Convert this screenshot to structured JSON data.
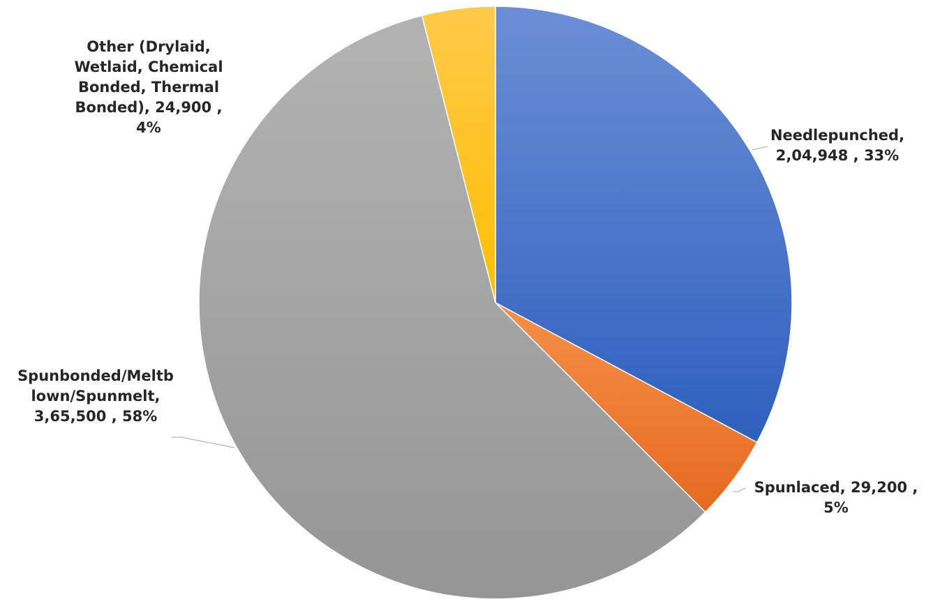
{
  "chart_data": {
    "type": "pie",
    "title": "",
    "legend": "none",
    "start_angle_deg": 0,
    "direction": "clockwise",
    "slices": [
      {
        "name": "Needlepunched",
        "value": 204948,
        "percent": 33,
        "color": "#4472c4",
        "label_lines": [
          "Needlepunched,",
          "2,04,948 , 33%"
        ]
      },
      {
        "name": "Spunlaced",
        "value": 29200,
        "percent": 5,
        "color": "#ed7d31",
        "label_lines": [
          "Spunlaced,  29,200 ,",
          "5%"
        ]
      },
      {
        "name": "Spunbonded/Meltblown/Spunmelt",
        "value": 365500,
        "percent": 58,
        "color": "#a5a5a5",
        "label_lines": [
          "Spunbonded/Meltb",
          "lown/Spunmelt,",
          "3,65,500 , 58%"
        ]
      },
      {
        "name": "Other (Drylaid, Wetlaid, Chemical Bonded, Thermal Bonded)",
        "value": 24900,
        "percent": 4,
        "color": "#ffc000",
        "label_lines": [
          "Other (Drylaid,",
          "Wetlaid, Chemical",
          "Bonded, Thermal",
          "Bonded),  24,900 ,",
          "4%"
        ]
      }
    ]
  }
}
